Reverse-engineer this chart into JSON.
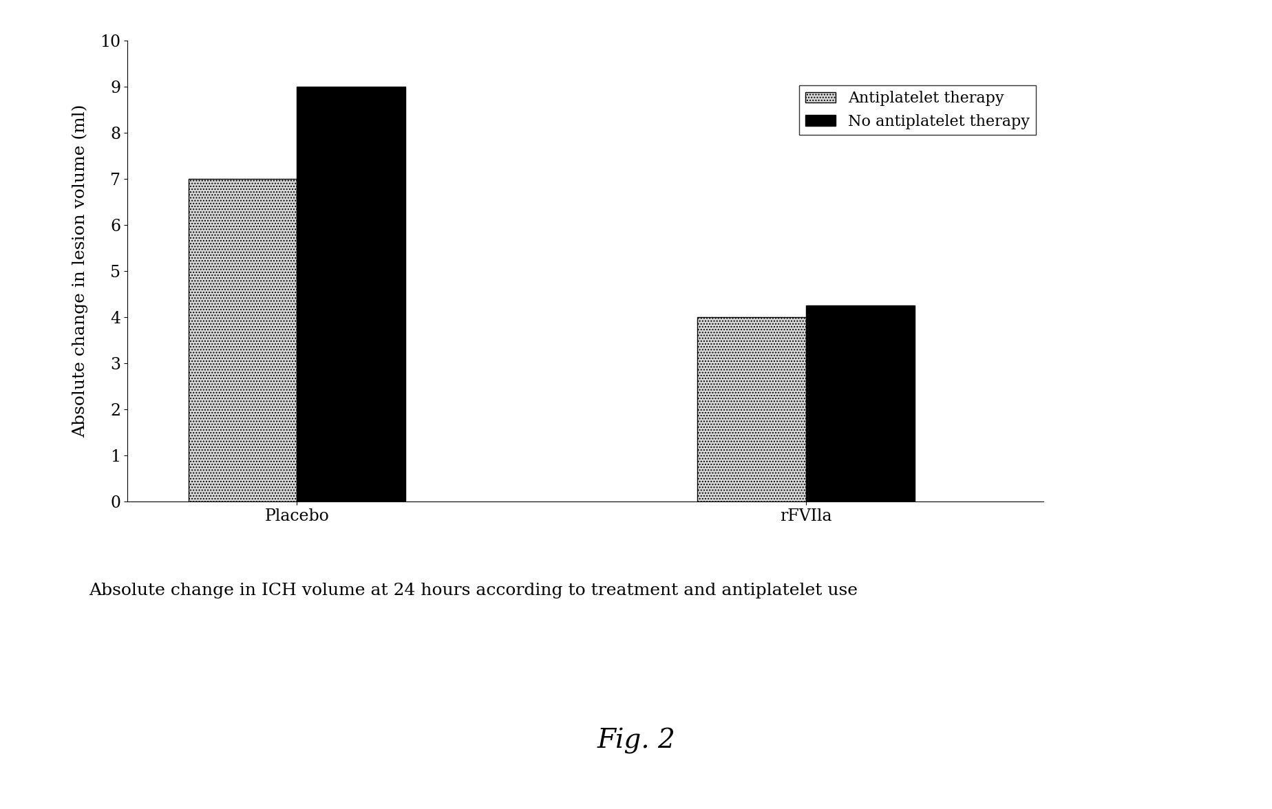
{
  "groups": [
    "Placebo",
    "rFVIla"
  ],
  "antiplatelet_values": [
    7.0,
    4.0
  ],
  "no_antiplatelet_values": [
    9.0,
    4.25
  ],
  "antiplatelet_color": "#d8d8d8",
  "no_antiplatelet_color": "#000000",
  "antiplatelet_hatch": "....",
  "ylabel": "Absolute change in lesion volume (ml)",
  "ylim": [
    0,
    10
  ],
  "yticks": [
    0,
    1,
    2,
    3,
    4,
    5,
    6,
    7,
    8,
    9,
    10
  ],
  "legend_labels": [
    "Antiplatelet therapy",
    "No antiplatelet therapy"
  ],
  "caption": "Absolute change in ICH volume at 24 hours according to treatment and antiplatelet use",
  "fig_label": "Fig. 2",
  "bar_width": 0.32,
  "background_color": "#ffffff",
  "axis_fontsize": 18,
  "tick_fontsize": 17,
  "legend_fontsize": 16,
  "caption_fontsize": 18,
  "fig_label_fontsize": 28,
  "group_centers": [
    1.0,
    2.5
  ]
}
